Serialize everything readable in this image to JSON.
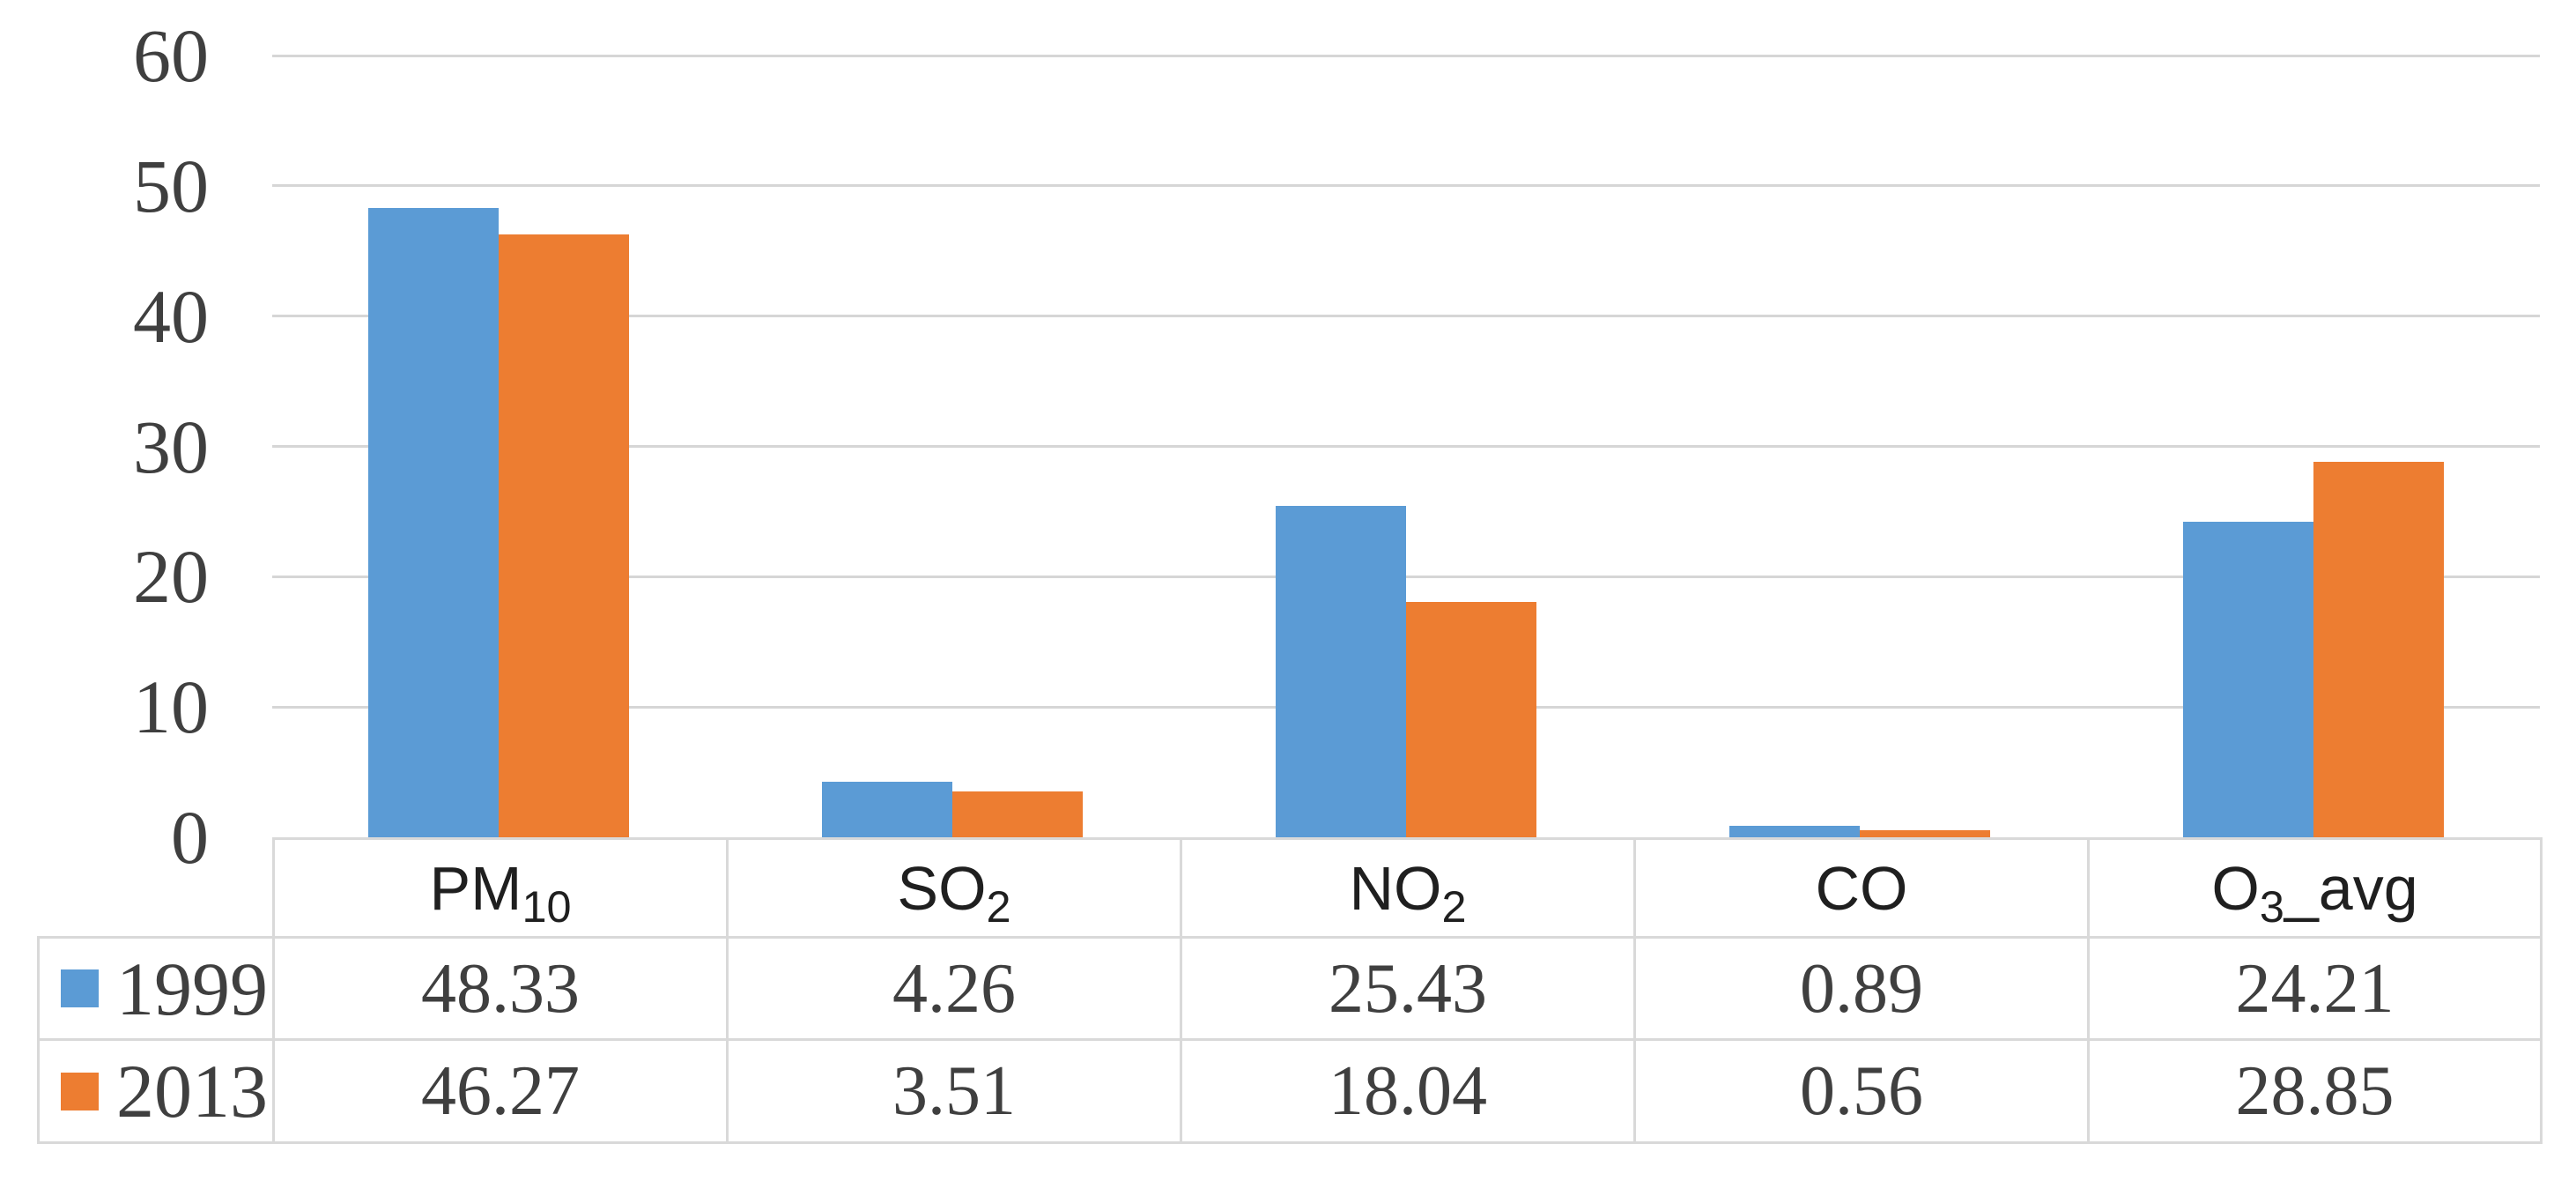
{
  "figure": {
    "background": "#FFFFFF"
  },
  "chart_data": {
    "type": "bar",
    "title": "",
    "xlabel": "",
    "ylabel": "",
    "categories": [
      "PM10",
      "SO2",
      "NO2",
      "CO",
      "O3_avg"
    ],
    "categories_rich": [
      {
        "base": "PM",
        "sub": "10",
        "tail": ""
      },
      {
        "base": "SO",
        "sub": "2",
        "tail": ""
      },
      {
        "base": "NO",
        "sub": "2",
        "tail": ""
      },
      {
        "base": "CO",
        "sub": "",
        "tail": ""
      },
      {
        "base": "O",
        "sub": "3",
        "tail": "_avg"
      }
    ],
    "series": [
      {
        "name": "1999",
        "color": "#5B9BD5",
        "values": [
          48.33,
          4.26,
          25.43,
          0.89,
          24.21
        ],
        "display": [
          "48.33",
          "4.26",
          "25.43",
          "0.89",
          "24.21"
        ]
      },
      {
        "name": "2013",
        "color": "#ED7D31",
        "values": [
          46.27,
          3.51,
          18.04,
          0.56,
          28.85
        ],
        "display": [
          "46.27",
          "3.51",
          "18.04",
          "0.56",
          "28.85"
        ]
      }
    ],
    "ylim": [
      0,
      60
    ],
    "yticks": [
      60,
      50,
      40,
      30,
      20,
      10,
      0
    ],
    "grid": true,
    "legend_position": "table-rows-left",
    "gridline_color": "#D6D6D6",
    "table_border_color": "#D9D9D9",
    "axis_text_color": "#3F3F3F",
    "value_text_color": "#3F3F3F",
    "header_text_color": "#1F1F1F"
  }
}
